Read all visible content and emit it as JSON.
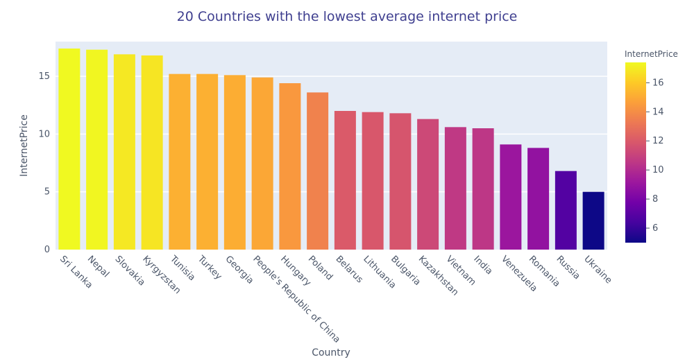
{
  "chart_data": {
    "type": "bar",
    "title": "20 Countries with the lowest average internet price",
    "xlabel": "Country",
    "ylabel": "InternetPrice",
    "categories": [
      "Sri Lanka",
      "Nepal",
      "Slovakia",
      "Kyrgyzstan",
      "Tunisia",
      "Turkey",
      "Georgia",
      "People's Republic of China",
      "Hungary",
      "Poland",
      "Belarus",
      "Lithuania",
      "Bulgaria",
      "Kazakhstan",
      "Vietnam",
      "India",
      "Venezuela",
      "Romania",
      "Russia",
      "Ukraine"
    ],
    "values": [
      17.4,
      17.3,
      16.9,
      16.8,
      15.2,
      15.2,
      15.1,
      14.9,
      14.4,
      13.6,
      12.0,
      11.9,
      11.8,
      11.3,
      10.6,
      10.5,
      9.1,
      8.8,
      6.8,
      5.0
    ],
    "ylim": [
      0,
      18
    ],
    "yticks": [
      0,
      5,
      10,
      15
    ],
    "colorbar": {
      "title": "InternetPrice",
      "range": [
        5.0,
        17.4
      ],
      "ticks": [
        6,
        8,
        10,
        12,
        14,
        16
      ]
    },
    "colorscale": [
      "#0d0887",
      "#46039f",
      "#7201a8",
      "#9c179e",
      "#bd3786",
      "#d8576b",
      "#ed7953",
      "#fb9f3a",
      "#fdca26",
      "#f0f921"
    ],
    "plot_background": "#e5ecf6",
    "grid": true
  }
}
